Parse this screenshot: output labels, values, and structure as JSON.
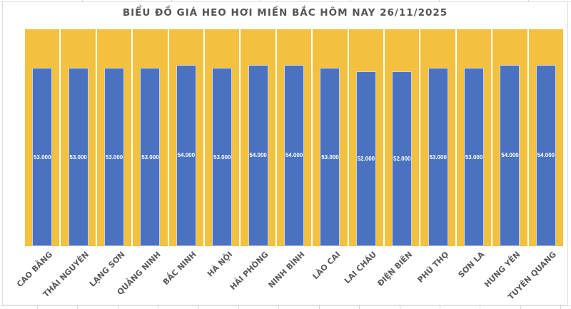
{
  "chart_data": {
    "type": "bar",
    "title": "BIỂU ĐỒ GIÁ HEO HƠI MIỀN BẮC HÔM NAY 26/11/2025",
    "categories": [
      "CAO BẰNG",
      "THÁI NGUYÊN",
      "LẠNG SƠN",
      "QUẢNG NINH",
      "BẮC NINH",
      "HÀ NỘI",
      "HẢI PHÒNG",
      "NINH BÌNH",
      "LÀO CAI",
      "LAI CHÂU",
      "ĐIỆN BIÊN",
      "PHÚ THỌ",
      "SƠN LA",
      "HƯNG YÊN",
      "TUYÊN QUANG"
    ],
    "values": [
      53000,
      53000,
      53000,
      53000,
      54000,
      53000,
      54000,
      54000,
      53000,
      52000,
      52000,
      53000,
      53000,
      54000,
      54000
    ],
    "value_labels": [
      "53.000",
      "53.000",
      "53.000",
      "53.000",
      "54.000",
      "53.000",
      "54.000",
      "54.000",
      "53.000",
      "52.000",
      "52.000",
      "53.000",
      "53.000",
      "54.000",
      "54.000"
    ],
    "xlabel": "",
    "ylabel": "",
    "ylim": [
      0,
      64500
    ],
    "grid": false,
    "legend": "none",
    "data_label_position": "center",
    "colors": {
      "bar": "#4a72c0",
      "background_bar": "#f3c13f",
      "value_label_text": "#ffffff",
      "axis_label_text": "#595959",
      "title_text": "#555555"
    }
  }
}
